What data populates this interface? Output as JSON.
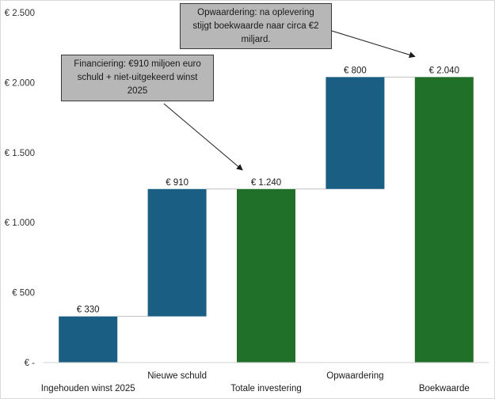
{
  "chart_data": {
    "type": "bar",
    "subtype": "waterfall",
    "title": "",
    "xlabel": "",
    "ylabel": "",
    "ylim": [
      0,
      2500
    ],
    "yticks": [
      0,
      500,
      1000,
      1500,
      2000,
      2500
    ],
    "ytick_labels": [
      "€ -",
      "€ 500",
      "€ 1.000",
      "€ 1.500",
      "€ 2.000",
      "€ 2.500"
    ],
    "categories": [
      "Ingehouden winst  2025",
      "Nieuwe schuld",
      "Totale investering",
      "Opwaardering",
      "Boekwaarde"
    ],
    "bars": [
      {
        "category": "Ingehouden winst  2025",
        "start": 0,
        "end": 330,
        "label": "€ 330",
        "kind": "increase"
      },
      {
        "category": "Nieuwe schuld",
        "start": 330,
        "end": 1240,
        "label": "€ 910",
        "kind": "increase"
      },
      {
        "category": "Totale investering",
        "start": 0,
        "end": 1240,
        "label": "€ 1.240",
        "kind": "total"
      },
      {
        "category": "Opwaardering",
        "start": 1240,
        "end": 2040,
        "label": "€ 800",
        "kind": "increase"
      },
      {
        "category": "Boekwaarde",
        "start": 0,
        "end": 2040,
        "label": "€ 2.040",
        "kind": "total"
      }
    ],
    "colors": {
      "increase": "#1b5e84",
      "total": "#21702a"
    },
    "grid": false,
    "legend": "none",
    "annotations": [
      {
        "text": "Opwaardering: na oplevering\nstijgt boekwaarde naar circa €2\nmiljard.",
        "target_category": "Boekwaarde",
        "target_value": 2040
      },
      {
        "text": "Financiering: €910 miljoen euro\nschuld + niet-uitgekeerd winst\n2025",
        "target_category": "Totale investering",
        "target_value": 1240
      }
    ]
  }
}
